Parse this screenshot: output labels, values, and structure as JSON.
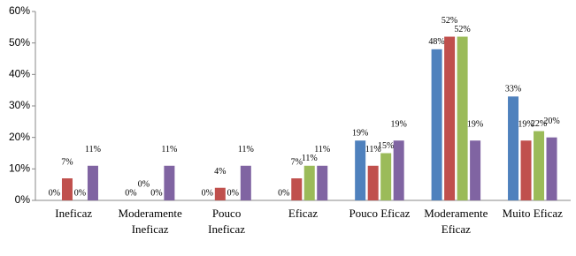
{
  "chart_data": {
    "type": "bar",
    "categories": [
      "Ineficaz",
      "Moderamente\nIneficaz",
      "Pouco\nIneficaz",
      "Eficaz",
      "Pouco Eficaz",
      "Moderamente\nEficaz",
      "Muito Eficaz"
    ],
    "series": [
      {
        "color": "#4f81bd",
        "values": [
          0,
          0,
          0,
          0,
          19,
          48,
          33
        ],
        "value_labels": [
          "0%",
          "0%",
          "0%",
          "0%",
          "19%",
          "48%",
          "33%"
        ]
      },
      {
        "color": "#c0504d",
        "values": [
          7,
          0,
          4,
          7,
          11,
          52,
          19
        ],
        "value_labels": [
          "7%",
          "0%",
          "4%",
          "7%",
          "11%",
          "52%",
          "19%"
        ]
      },
      {
        "color": "#9bbb59",
        "values": [
          0,
          0,
          0,
          11,
          15,
          52,
          22
        ],
        "value_labels": [
          "0%",
          "0%",
          "0%",
          "11%",
          "15%",
          "52%",
          "22%"
        ]
      },
      {
        "color": "#8064a2",
        "values": [
          11,
          11,
          11,
          11,
          19,
          19,
          20
        ],
        "value_labels": [
          "11%",
          "11%",
          "11%",
          "11%",
          "19%",
          "19%",
          "20%"
        ]
      }
    ],
    "ylim": [
      0,
      60
    ],
    "yticks": [
      {
        "value": 0,
        "label": "0%"
      },
      {
        "value": 10,
        "label": "10%"
      },
      {
        "value": 20,
        "label": "20%"
      },
      {
        "value": 30,
        "label": "30%"
      },
      {
        "value": 40,
        "label": "40%"
      },
      {
        "value": 50,
        "label": "50%"
      },
      {
        "value": 60,
        "label": "60%"
      }
    ]
  }
}
